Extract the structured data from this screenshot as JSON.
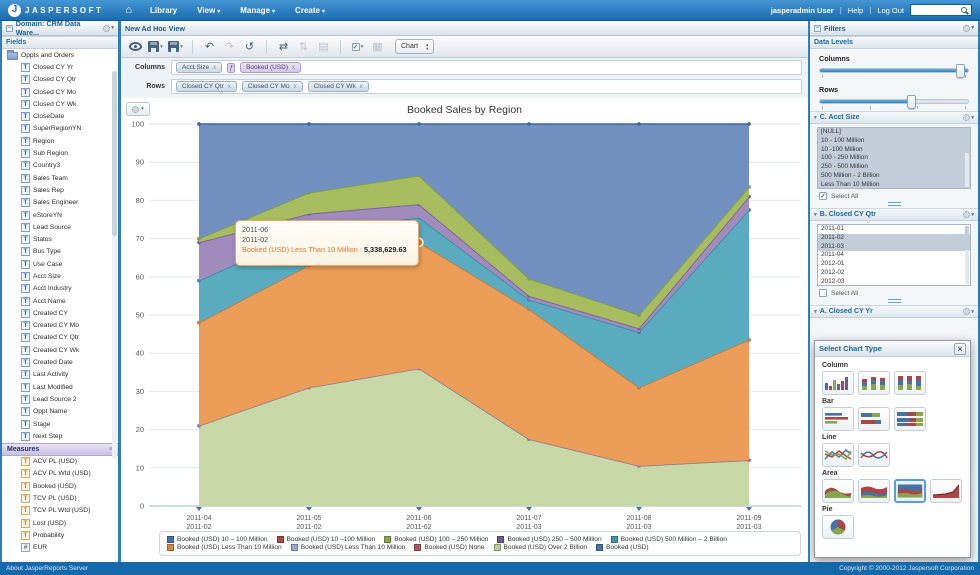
{
  "icons": {
    "logo": "J",
    "home": "⌂",
    "caret": "▾",
    "collapse": "−",
    "menu": "≡",
    "undo": "↶",
    "redo": "↷",
    "reset": "↺",
    "pivot": "⇄",
    "sort": "⇅",
    "panel": "▤",
    "grid": "▦",
    "check": "✓",
    "close": "×",
    "stepper_up": "▴",
    "stepper_down": "▾",
    "function_badge": "ƒ",
    "remove": "x"
  },
  "topbar": {
    "brand": "JASPERSOFT",
    "menus": [
      "Library",
      "View",
      "Manage",
      "Create"
    ],
    "user": "jasperadmin User",
    "help": "Help",
    "logout": "Log Out",
    "search_placeholder": ""
  },
  "left_panel": {
    "title": "Domain: CRM Data Ware...",
    "fields_header": "Fields",
    "folder": "Oppts and Orders",
    "fields": [
      "Closed CY Yr",
      "Closed CY Qtr",
      "Closed CY Mo",
      "Closed CY Wk",
      "CloseDate",
      "SuperRegionYN",
      "Region",
      "Sub Region",
      "Country3",
      "Sales Team",
      "Sales Rep",
      "Sales Engineer",
      "eStoreYN",
      "Lead Source",
      "Status",
      "Bus Type",
      "Use Case",
      "Acct Size",
      "Acct Industry",
      "Acct Name",
      "Created CY",
      "Created CY Mo",
      "Created CY Qtr",
      "Created CY Wk",
      "Created Date",
      "Last Activity",
      "Last Modified",
      "Lead Source 2",
      "Oppt Name",
      "Stage",
      "Next Step"
    ],
    "measures_header": "Measures",
    "measures": [
      "ACV PL (USD)",
      "ACV PL Wtd (USD)",
      "Booked (USD)",
      "TCV PL (USD)",
      "TCV PL Wtd (USD)",
      "Lost (USD)",
      "Probability",
      "EUR"
    ]
  },
  "main": {
    "title": "New Ad Hoc View",
    "toolbar": {
      "chart_select": "Chart"
    },
    "columns_label": "Columns",
    "rows_label": "Rows",
    "columns_pills": [
      {
        "label": "Acct Size",
        "kind": "field"
      },
      {
        "label": "Booked (USD)",
        "kind": "measure"
      }
    ],
    "rows_pills": [
      {
        "label": "Closed CY Qtr",
        "kind": "field"
      },
      {
        "label": "Closed CY Mo",
        "kind": "field"
      },
      {
        "label": "Closed CY Wk",
        "kind": "field"
      }
    ]
  },
  "tooltip": {
    "lines": [
      "2011-06",
      "2011-02"
    ],
    "series_label": "Booked (USD) Less Than 10 Million :",
    "value": "5,338,629.63"
  },
  "chart_data": {
    "type": "area",
    "stacking": "percent",
    "title": "Booked Sales by Region",
    "ylim": [
      0,
      100
    ],
    "y_ticks": [
      0,
      10,
      20,
      30,
      40,
      50,
      60,
      70,
      80,
      90,
      100
    ],
    "x_labels_line1": [
      "2011-04",
      "2011-05",
      "2011-06",
      "2011-07",
      "2011-08",
      "2011-09"
    ],
    "x_labels_line2": [
      "2011-02",
      "2011-02",
      "2011-02",
      "2011-03",
      "2011-03",
      "2011-03"
    ],
    "series": [
      {
        "name": "Booked (USD) Over 2 Billion",
        "fill": "#c8d7a6",
        "stroke": "#8d7a95",
        "tops": [
          21,
          31,
          36,
          17.5,
          10.5,
          12
        ]
      },
      {
        "name": "Booked (USD) Less Than 10 Million",
        "fill": "#eb9d58",
        "stroke": "#d0752c",
        "tops": [
          48,
          63,
          69,
          51.5,
          31,
          43.5
        ]
      },
      {
        "name": "Booked (USD) 500 Million – 2 Billion",
        "fill": "#5aabbf",
        "stroke": "#2e8ca4",
        "tops": [
          59,
          72,
          75.5,
          54,
          45.5,
          77.5
        ]
      },
      {
        "name": "Booked (USD) 250 – 500 Million",
        "fill": "#a18abc",
        "stroke": "#775b9b",
        "tops": [
          69,
          76.5,
          79,
          55,
          46.5,
          81
        ]
      },
      {
        "name": "Booked (USD) 100 – 250 Million",
        "fill": "#a6bc5e",
        "stroke": "#7fa230",
        "tops": [
          70,
          82,
          86.5,
          59.5,
          50,
          83.5
        ]
      },
      {
        "name": "Booked (USD) 10 – 100 Million",
        "fill": "#7190bf",
        "stroke": "#3e69a2",
        "tops": [
          100,
          100,
          100,
          100,
          100,
          100
        ]
      }
    ],
    "highlight": {
      "x_index": 2,
      "pct": 69,
      "color": "#e8821e",
      "series": "Booked (USD) Less Than 10 Million"
    },
    "legend_position": "bottom",
    "legend": [
      {
        "label": "Booked (USD) 10 – 100 Million",
        "color": "#4572a7"
      },
      {
        "label": "Booked (USD) 10 –100 Million",
        "color": "#aa4643"
      },
      {
        "label": "Booked (USD) 100 – 250 Million",
        "color": "#89a54e"
      },
      {
        "label": "Booked (USD) 250 – 500 Million",
        "color": "#71588f"
      },
      {
        "label": "Booked (USD) 500 Million – 2 Billion",
        "color": "#3d96ae"
      },
      {
        "label": "Booked (USD) Less Than 10 Million",
        "color": "#db843d"
      },
      {
        "label": "Booked (USD) Less Than 10 Million",
        "color": "#92a8cd"
      },
      {
        "label": "Booked (USD) None",
        "color": "#a45c5c"
      },
      {
        "label": "Booked (USD) Over 2 Billion",
        "color": "#b9cd96"
      },
      {
        "label": "Booked (USD)",
        "color": "#4572a7"
      }
    ]
  },
  "right_panel": {
    "title": "Filters",
    "data_levels": "Data Levels",
    "columns_label": "Columns",
    "rows_label": "Rows",
    "columns_slider_pct": 97,
    "rows_slider_pct": 62,
    "sections": [
      {
        "title": "C. Acct Size",
        "items": [
          "[NULL]",
          "10 - 100 Million",
          "10 -100 Million",
          "100 - 250 Million",
          "250 - 500 Million",
          "500 Million - 2 Billion",
          "Less Than 10 Million"
        ],
        "selected_indices": [
          0,
          1,
          2,
          3,
          4,
          5,
          6
        ],
        "select_all_label": "Select All",
        "select_all_checked": true
      },
      {
        "title": "B. Closed CY Qtr",
        "items": [
          "2011-01",
          "2011-02",
          "2011-03",
          "2011-04",
          "2012-01",
          "2012-02",
          "2012-03"
        ],
        "selected_indices": [
          1,
          2
        ],
        "select_all_label": "Select All",
        "select_all_checked": false
      },
      {
        "title": "A. Closed CY Yr",
        "items": []
      }
    ]
  },
  "dialog": {
    "title": "Select Chart Type",
    "groups": [
      {
        "label": "Column",
        "variants": [
          "clustered",
          "stacked",
          "percent"
        ]
      },
      {
        "label": "Bar",
        "variants": [
          "clustered",
          "stacked",
          "percent"
        ]
      },
      {
        "label": "Line",
        "variants": [
          "standard",
          "curved"
        ]
      },
      {
        "label": "Area",
        "variants": [
          "standard",
          "stacked",
          "percent",
          "rising"
        ],
        "selected": "percent"
      },
      {
        "label": "Pie",
        "variants": [
          "pie"
        ]
      }
    ]
  },
  "footer": {
    "left": "About JasperReports Server",
    "right": "Copyright © 2000-2012 Jaspersoft Corporation"
  }
}
